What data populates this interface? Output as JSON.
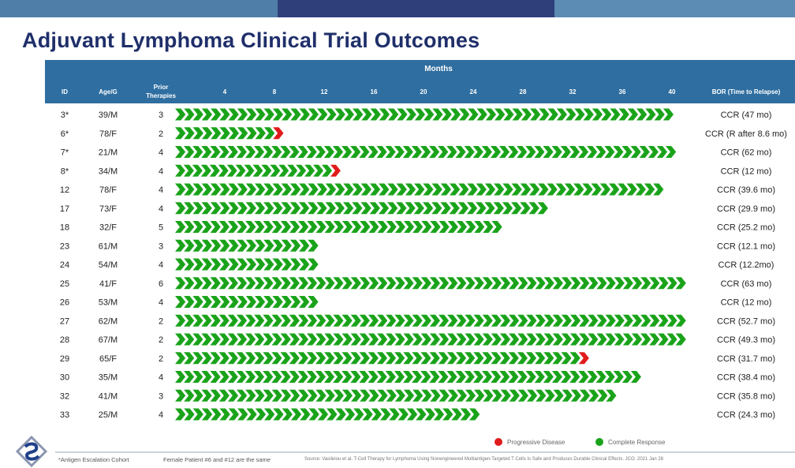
{
  "title": "Adjuvant Lymphoma Clinical Trial Outcomes",
  "colors": {
    "header_bg": "#2f6ea0",
    "complete_response": "#1aa31a",
    "progressive_disease": "#e01b1b",
    "title": "#1f2f6a"
  },
  "chart_data": {
    "type": "bar",
    "header": {
      "months_label": "Months",
      "columns": [
        "ID",
        "Age/G",
        "Prior Therapies"
      ],
      "bor_label": "BOR (Time to Relapse)"
    },
    "x_ticks": [
      4,
      8,
      12,
      16,
      20,
      24,
      28,
      32,
      36,
      40
    ],
    "xlim": [
      0,
      42
    ],
    "rows": [
      {
        "id": "3*",
        "age_g": "39/M",
        "prior": "3",
        "months": 40.0,
        "end": "response",
        "bor": "CCR (47 mo)"
      },
      {
        "id": "6*",
        "age_g": "78/F",
        "prior": "2",
        "months": 8.6,
        "end": "progression",
        "bor": "CCR (R after 8.6 mo)"
      },
      {
        "id": "7*",
        "age_g": "21/M",
        "prior": "4",
        "months": 40.2,
        "end": "response",
        "bor": "CCR (62 mo)"
      },
      {
        "id": "8*",
        "age_g": "34/M",
        "prior": "4",
        "months": 13.2,
        "end": "progression",
        "bor": "CCR (12 mo)"
      },
      {
        "id": "12",
        "age_g": "78/F",
        "prior": "4",
        "months": 39.2,
        "end": "response",
        "bor": "CCR (39.6 mo)"
      },
      {
        "id": "17",
        "age_g": "73/F",
        "prior": "4",
        "months": 29.9,
        "end": "response",
        "bor": "CCR (29.9 mo)"
      },
      {
        "id": "18",
        "age_g": "32/F",
        "prior": "5",
        "months": 26.2,
        "end": "response",
        "bor": "CCR (25.2 mo)"
      },
      {
        "id": "23",
        "age_g": "61/M",
        "prior": "3",
        "months": 11.4,
        "end": "response",
        "bor": "CCR (12.1 mo)"
      },
      {
        "id": "24",
        "age_g": "54/M",
        "prior": "4",
        "months": 11.4,
        "end": "response",
        "bor": "CCR (12.2mo)"
      },
      {
        "id": "25",
        "age_g": "41/F",
        "prior": "6",
        "months": 41.0,
        "end": "response",
        "bor": "CCR (63 mo)"
      },
      {
        "id": "26",
        "age_g": "53/M",
        "prior": "4",
        "months": 11.4,
        "end": "response",
        "bor": "CCR (12 mo)"
      },
      {
        "id": "27",
        "age_g": "62/M",
        "prior": "2",
        "months": 41.0,
        "end": "response",
        "bor": "CCR (52.7 mo)"
      },
      {
        "id": "28",
        "age_g": "67/M",
        "prior": "2",
        "months": 41.0,
        "end": "response",
        "bor": "CCR (49.3 mo)"
      },
      {
        "id": "29",
        "age_g": "65/F",
        "prior": "2",
        "months": 33.2,
        "end": "progression",
        "bor": "CCR (31.7 mo)"
      },
      {
        "id": "30",
        "age_g": "35/M",
        "prior": "4",
        "months": 37.4,
        "end": "response",
        "bor": "CCR (38.4 mo)"
      },
      {
        "id": "32",
        "age_g": "41/M",
        "prior": "3",
        "months": 35.4,
        "end": "response",
        "bor": "CCR (35.8 mo)"
      },
      {
        "id": "33",
        "age_g": "25/M",
        "prior": "4",
        "months": 24.4,
        "end": "response",
        "bor": "CCR (24.3 mo)"
      }
    ],
    "legend": [
      {
        "label": "Progressive Disease",
        "color": "#e01b1b"
      },
      {
        "label": "Complete Response",
        "color": "#1aa31a"
      }
    ]
  },
  "footnotes": {
    "cohort": "*Antigen Escalation Cohort",
    "same_patient": "Female Patient #6 and #12 are the same",
    "source": "Source: Vasileiou et al. T-Cell Therapy for Lymphoma Using Nonengineered Multiantigen-Targeted T Cells Is Safe and Produces Durable Clinical Effects. JCO. 2021 Jan 28"
  }
}
